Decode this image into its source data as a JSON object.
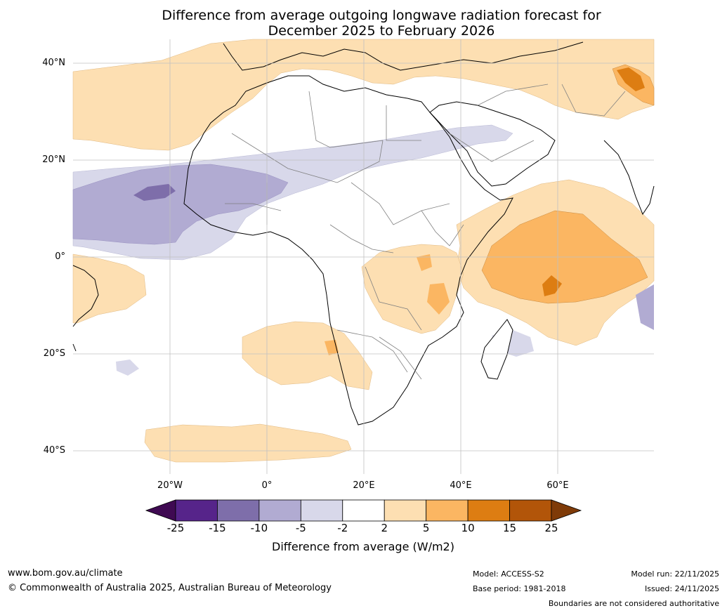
{
  "title": {
    "line1": "Difference from average outgoing longwave radiation forecast for",
    "line2": "December 2025 to February 2026"
  },
  "map": {
    "lat_labels": [
      "40°N",
      "20°N",
      "0°",
      "20°S",
      "40°S"
    ],
    "lon_labels": [
      "20°W",
      "0°",
      "20°E",
      "40°E",
      "60°E"
    ]
  },
  "colorbar": {
    "ticks": [
      "-25",
      "-15",
      "-10",
      "-5",
      "-2",
      "2",
      "5",
      "10",
      "15",
      "25"
    ],
    "colors": [
      "#3f0a52",
      "#56248a",
      "#7e6eaa",
      "#b1abd2",
      "#d8d8ea",
      "#ffffff",
      "#fddfb2",
      "#fbb662",
      "#dd7d12",
      "#b25509",
      "#7f3b08"
    ],
    "label": "Difference from average (W/m2)"
  },
  "footer": {
    "website": "www.bom.gov.au/climate",
    "copyright": "© Commonwealth of Australia 2025, Australian Bureau of Meteorology",
    "model": "Model: ACCESS-S2",
    "base_period": "Base period: 1981-2018",
    "model_run": "Model run: 22/11/2025",
    "issued": "Issued: 24/11/2025",
    "disclaimer": "Boundaries are not considered authoritative"
  }
}
